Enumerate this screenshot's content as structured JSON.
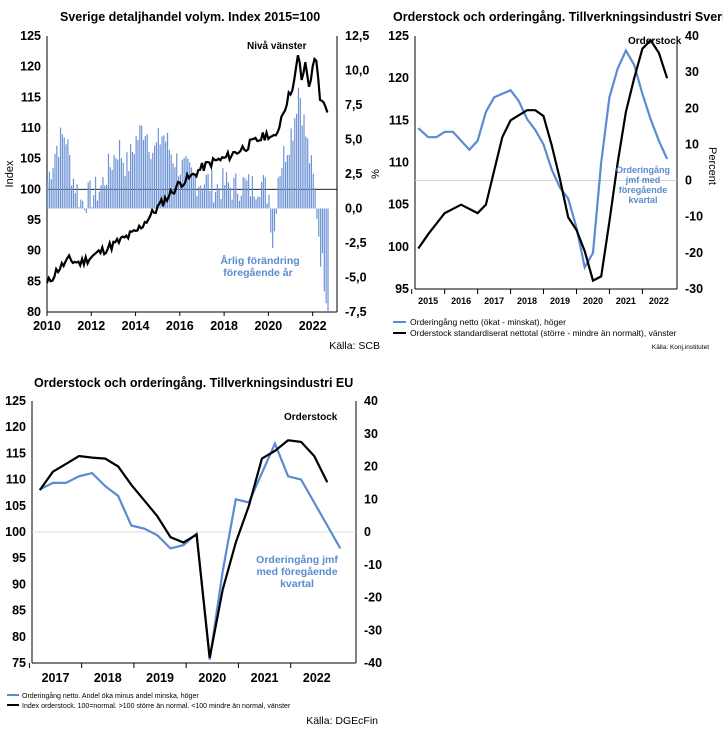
{
  "colors": {
    "blue": "#5b8bd0",
    "bar_blue": "#6d93d6",
    "black": "#000000",
    "grid": "#c8c8c8"
  },
  "chart_data": [
    {
      "id": "retail",
      "type": "bar+line",
      "title": "Sverige detaljhandel volym. Index 2015=100",
      "ylabel_left": "Index",
      "ylabel_right": "%",
      "ylim_left": [
        80,
        125
      ],
      "ylim_right": [
        -7.5,
        12.5
      ],
      "yticks_left": [
        "125",
        "120",
        "115",
        "110",
        "105",
        "100",
        "95",
        "90",
        "85",
        "80"
      ],
      "yticks_right": [
        "12,5",
        "10,0",
        "7,5",
        "5,0",
        "2,5",
        "0,0",
        "-2,5",
        "-5,0",
        "-7,5"
      ],
      "xticks": [
        "2010",
        "2012",
        "2014",
        "2016",
        "2018",
        "2020",
        "2022"
      ],
      "annotation_line": "Nivå vänster",
      "annotation_bars": [
        "Årlig förändring",
        "föregående år"
      ],
      "source": "Källa: SCB",
      "line_anchors": [
        [
          2010.0,
          84.5
        ],
        [
          2010.5,
          87
        ],
        [
          2011.0,
          88.5
        ],
        [
          2011.5,
          88
        ],
        [
          2012.0,
          89
        ],
        [
          2012.5,
          90
        ],
        [
          2013.0,
          91
        ],
        [
          2013.5,
          92
        ],
        [
          2014.0,
          93
        ],
        [
          2014.5,
          95
        ],
        [
          2015.0,
          97
        ],
        [
          2015.5,
          99
        ],
        [
          2016.0,
          101
        ],
        [
          2016.5,
          102
        ],
        [
          2017.0,
          103.5
        ],
        [
          2017.5,
          104.5
        ],
        [
          2018.0,
          105
        ],
        [
          2018.5,
          106
        ],
        [
          2019.0,
          107
        ],
        [
          2019.5,
          108
        ],
        [
          2020.0,
          109
        ],
        [
          2020.3,
          108
        ],
        [
          2020.6,
          112
        ],
        [
          2021.0,
          116
        ],
        [
          2021.2,
          118
        ],
        [
          2021.35,
          122
        ],
        [
          2021.5,
          118
        ],
        [
          2021.7,
          120.5
        ],
        [
          2021.85,
          116
        ],
        [
          2022.0,
          120.5
        ],
        [
          2022.2,
          121
        ],
        [
          2022.35,
          114
        ],
        [
          2022.55,
          113.5
        ],
        [
          2022.75,
          111
        ]
      ],
      "bar_anchors": [
        [
          2010.0,
          2.0
        ],
        [
          2010.4,
          4.5
        ],
        [
          2010.8,
          5.5
        ],
        [
          2011.1,
          2.5
        ],
        [
          2011.5,
          0.5
        ],
        [
          2012.0,
          1.0
        ],
        [
          2012.4,
          1.5
        ],
        [
          2012.8,
          3.0
        ],
        [
          2013.2,
          4.5
        ],
        [
          2013.6,
          3.0
        ],
        [
          2014.0,
          5.0
        ],
        [
          2014.4,
          6.0
        ],
        [
          2014.8,
          4.0
        ],
        [
          2015.2,
          5.5
        ],
        [
          2015.6,
          4.0
        ],
        [
          2016.0,
          3.0
        ],
        [
          2016.4,
          2.5
        ],
        [
          2016.8,
          2.0
        ],
        [
          2017.2,
          2.0
        ],
        [
          2017.6,
          1.5
        ],
        [
          2018.0,
          1.8
        ],
        [
          2018.4,
          1.5
        ],
        [
          2018.8,
          1.8
        ],
        [
          2019.2,
          1.5
        ],
        [
          2019.6,
          2.0
        ],
        [
          2020.0,
          1.0
        ],
        [
          2020.2,
          -3.0
        ],
        [
          2020.4,
          2.5
        ],
        [
          2020.8,
          4.5
        ],
        [
          2021.1,
          6.0
        ],
        [
          2021.35,
          9.0
        ],
        [
          2021.6,
          6.0
        ],
        [
          2021.9,
          3.0
        ],
        [
          2022.1,
          1.0
        ],
        [
          2022.35,
          -3.5
        ],
        [
          2022.55,
          -5.5
        ],
        [
          2022.7,
          -7.0
        ]
      ]
    },
    {
      "id": "sweden_orders",
      "type": "line",
      "title": "Orderstock och orderingång. Tillverkningsindustri Sverige",
      "ylabel_right": "Percent",
      "ylim_left": [
        95,
        125
      ],
      "ylim_right": [
        -30,
        40
      ],
      "yticks_left": [
        "125",
        "120",
        "115",
        "110",
        "105",
        "100",
        "95"
      ],
      "yticks_right": [
        "40",
        "30",
        "20",
        "10",
        "0",
        "-10",
        "-20",
        "-30"
      ],
      "xticks": [
        "2015",
        "2016",
        "2017",
        "2018",
        "2019",
        "2020",
        "2021",
        "2022"
      ],
      "annotation_black": "Orderstock",
      "annotation_blue": [
        "Orderingång",
        "jmf med",
        "föregående",
        "kvartal"
      ],
      "series": [
        {
          "name": "Orderingång netto (ökat - minskat), höger",
          "axis": "right",
          "points": [
            [
              2014.7,
              14.5
            ],
            [
              2015.0,
              12
            ],
            [
              2015.25,
              12
            ],
            [
              2015.5,
              13.5
            ],
            [
              2015.75,
              13.5
            ],
            [
              2016.0,
              11
            ],
            [
              2016.25,
              8.5
            ],
            [
              2016.5,
              11
            ],
            [
              2016.75,
              19
            ],
            [
              2017.0,
              23
            ],
            [
              2017.25,
              24
            ],
            [
              2017.5,
              25
            ],
            [
              2017.75,
              22
            ],
            [
              2018.0,
              17
            ],
            [
              2018.25,
              14
            ],
            [
              2018.5,
              10
            ],
            [
              2018.75,
              3
            ],
            [
              2019.0,
              -2
            ],
            [
              2019.25,
              -5
            ],
            [
              2019.5,
              -13
            ],
            [
              2019.75,
              -24
            ],
            [
              2020.0,
              -20
            ],
            [
              2020.25,
              5
            ],
            [
              2020.5,
              23
            ],
            [
              2020.75,
              31
            ],
            [
              2021.0,
              36
            ],
            [
              2021.25,
              32
            ],
            [
              2021.5,
              24
            ],
            [
              2021.75,
              17
            ],
            [
              2022.0,
              11
            ],
            [
              2022.25,
              6
            ]
          ]
        },
        {
          "name": "Orderstock standardiserat nettotal (större - mindre än normalt), vänster",
          "axis": "left",
          "points": [
            [
              2014.7,
              99.8
            ],
            [
              2015.0,
              101.5
            ],
            [
              2015.5,
              104.0
            ],
            [
              2016.0,
              105
            ],
            [
              2016.5,
              104
            ],
            [
              2016.75,
              105
            ],
            [
              2017.0,
              109
            ],
            [
              2017.25,
              113
            ],
            [
              2017.5,
              115
            ],
            [
              2018.0,
              116.2
            ],
            [
              2018.25,
              116.2
            ],
            [
              2018.5,
              115.5
            ],
            [
              2018.75,
              112
            ],
            [
              2019.0,
              108
            ],
            [
              2019.25,
              103.5
            ],
            [
              2019.5,
              102
            ],
            [
              2019.75,
              99.5
            ],
            [
              2020.0,
              96
            ],
            [
              2020.25,
              96.5
            ],
            [
              2020.5,
              103
            ],
            [
              2020.75,
              110
            ],
            [
              2021.0,
              116
            ],
            [
              2021.25,
              120
            ],
            [
              2021.5,
              123.5
            ],
            [
              2021.75,
              124.5
            ],
            [
              2022.0,
              123
            ],
            [
              2022.25,
              120
            ]
          ]
        }
      ],
      "legend": [
        "Orderingång netto (ökat - minskat), höger",
        "Orderstock standardiserat nettotal (större - mindre än normalt), vänster"
      ],
      "source": "Källa: Konj.institutet"
    },
    {
      "id": "eu_orders",
      "type": "line",
      "title": "Orderstock och orderingång. Tillverkningsindustri EU",
      "ylim_left": [
        75,
        125
      ],
      "ylim_right": [
        -40,
        40
      ],
      "yticks_left": [
        "125",
        "120",
        "115",
        "110",
        "105",
        "100",
        "95",
        "90",
        "85",
        "80",
        "75"
      ],
      "yticks_right": [
        "40",
        "30",
        "20",
        "10",
        "0",
        "-10",
        "-20",
        "-30",
        "-40"
      ],
      "xticks": [
        "2017",
        "2018",
        "2019",
        "2020",
        "2021",
        "2022"
      ],
      "annotation_black": "Orderstock",
      "annotation_blue": [
        "Orderingång jmf",
        "med föregående",
        "kvartal"
      ],
      "series": [
        {
          "name": "Orderingång netto. Andel öka minus andel minska, höger",
          "axis": "right",
          "points": [
            [
              2016.7,
              13
            ],
            [
              2016.95,
              15
            ],
            [
              2017.2,
              15
            ],
            [
              2017.45,
              17
            ],
            [
              2017.7,
              18
            ],
            [
              2017.95,
              14
            ],
            [
              2018.2,
              11
            ],
            [
              2018.45,
              2
            ],
            [
              2018.7,
              1
            ],
            [
              2018.95,
              -1
            ],
            [
              2019.2,
              -5
            ],
            [
              2019.45,
              -4
            ],
            [
              2019.7,
              -0.5
            ],
            [
              2019.95,
              -39
            ],
            [
              2020.2,
              -12
            ],
            [
              2020.45,
              10
            ],
            [
              2020.7,
              9
            ],
            [
              2020.95,
              18
            ],
            [
              2021.2,
              27
            ],
            [
              2021.45,
              17
            ],
            [
              2021.7,
              16
            ],
            [
              2021.95,
              9
            ],
            [
              2022.2,
              2
            ],
            [
              2022.45,
              -5
            ]
          ]
        },
        {
          "name": "Index orderstock. 100=normal. >100 större än normal. <100 mindre än normal, vänster",
          "axis": "left",
          "points": [
            [
              2016.7,
              108
            ],
            [
              2016.95,
              111.5
            ],
            [
              2017.2,
              113
            ],
            [
              2017.45,
              114.5
            ],
            [
              2017.7,
              114.2
            ],
            [
              2017.95,
              114
            ],
            [
              2018.2,
              112.5
            ],
            [
              2018.45,
              109
            ],
            [
              2018.7,
              106
            ],
            [
              2018.95,
              103
            ],
            [
              2019.2,
              99
            ],
            [
              2019.45,
              98
            ],
            [
              2019.7,
              99.5
            ],
            [
              2019.95,
              76
            ],
            [
              2020.2,
              89
            ],
            [
              2020.45,
              98
            ],
            [
              2020.7,
              105
            ],
            [
              2020.95,
              114
            ],
            [
              2021.2,
              115.5
            ],
            [
              2021.45,
              117.5
            ],
            [
              2021.7,
              117.2
            ],
            [
              2021.95,
              114.5
            ],
            [
              2022.2,
              109.5
            ]
          ]
        }
      ],
      "legend": [
        "Orderingång netto. Andel öka minus andel minska, höger",
        "Index orderstock. 100=normal. >100 större än normal. <100 mindre än normal, vänster"
      ],
      "source": "Källa: DGEcFin"
    }
  ]
}
